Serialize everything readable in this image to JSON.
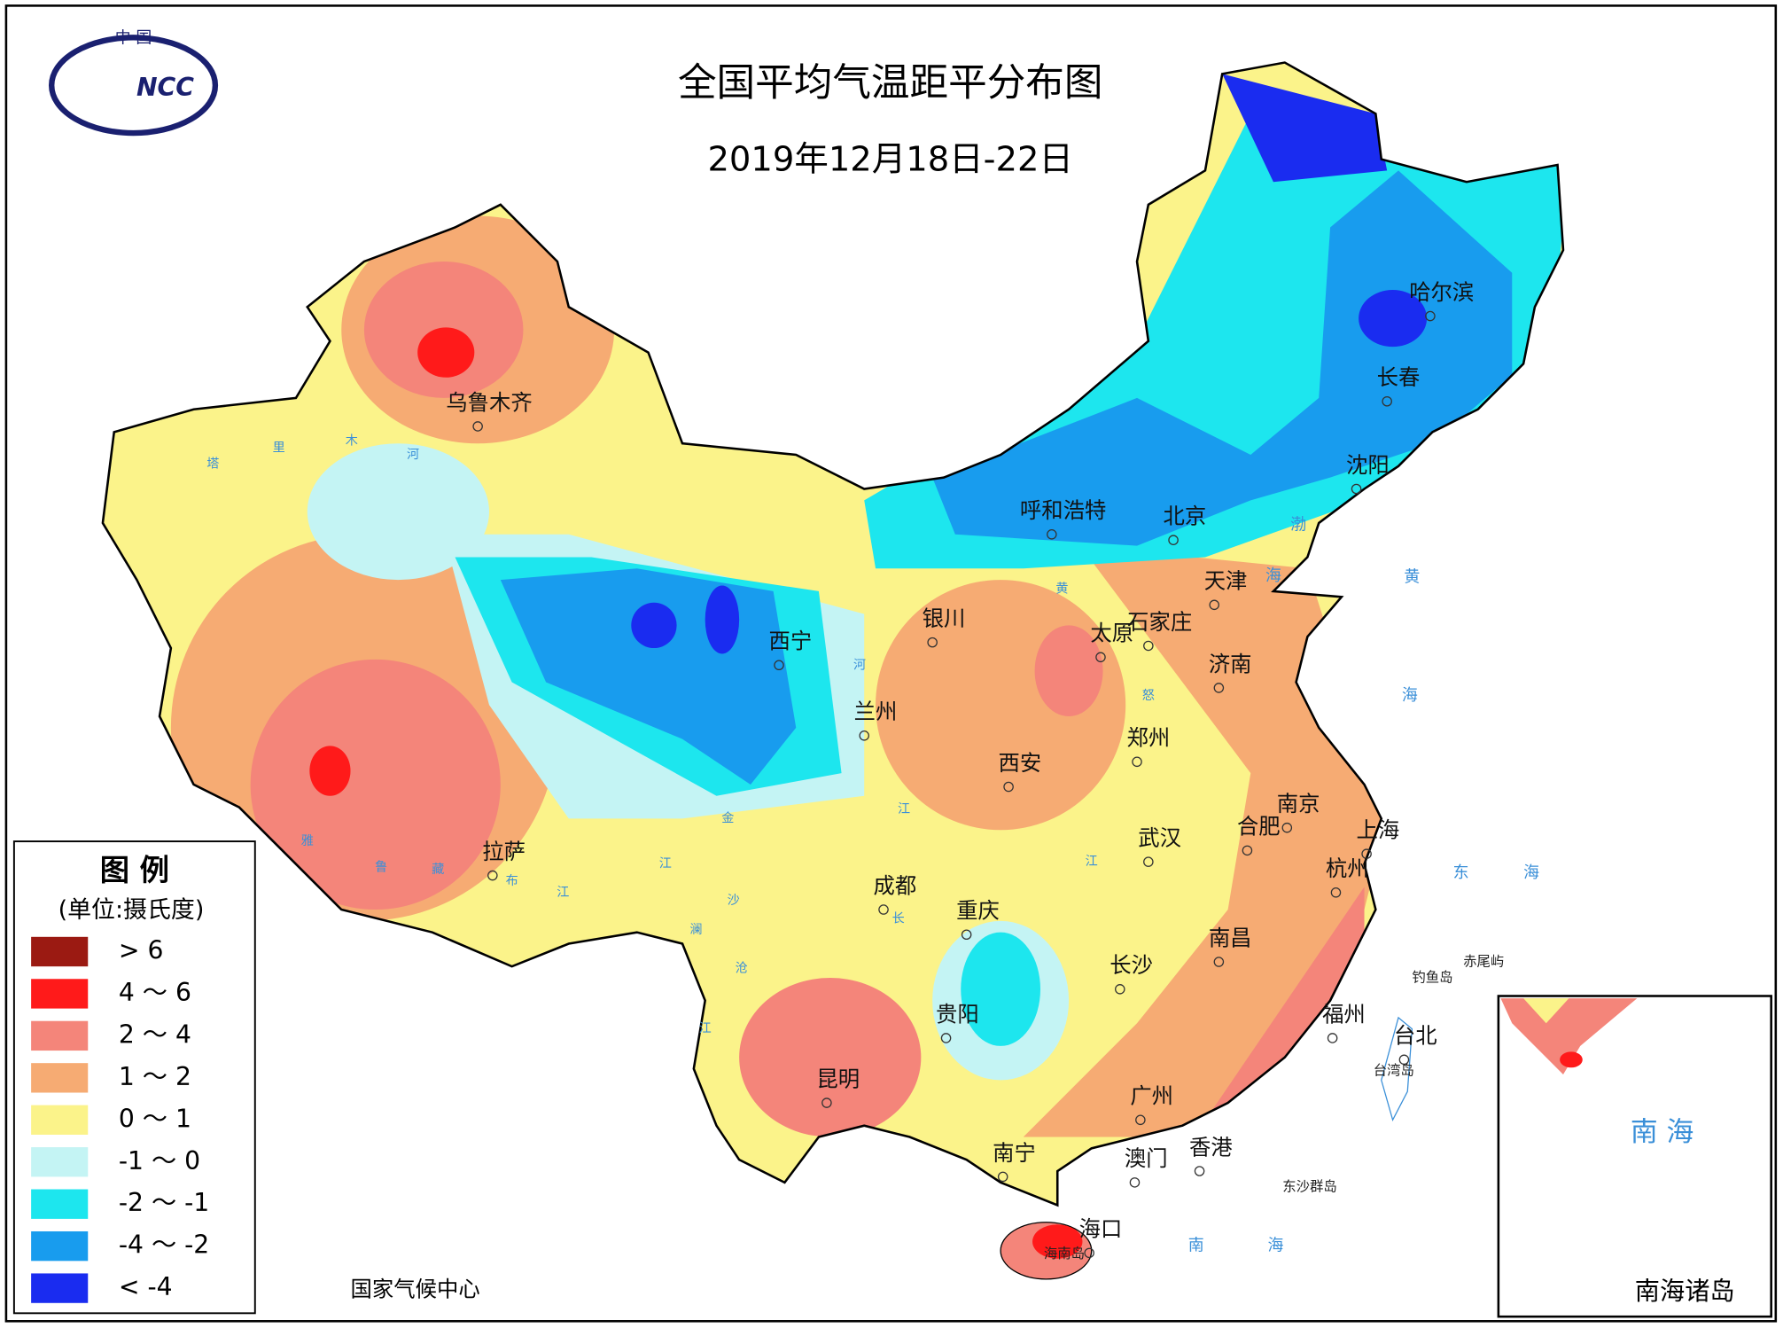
{
  "header": {
    "title": "全国平均气温距平分布图",
    "date": "2019年12月18日-22日",
    "logo_top": "中 国",
    "logo_text": "NCC"
  },
  "legend": {
    "title": "图 例",
    "unit": "(单位:摄氏度)",
    "items": [
      {
        "label": "> 6",
        "color": "#9b1a12"
      },
      {
        "label": "4 ～ 6",
        "color": "#ff1a1a"
      },
      {
        "label": "2 ～ 4",
        "color": "#f4857a"
      },
      {
        "label": "1 ～ 2",
        "color": "#f6ab73"
      },
      {
        "label": "0 ～ 1",
        "color": "#fbf38a"
      },
      {
        "label": "-1 ～ 0",
        "color": "#c4f4f4"
      },
      {
        "label": "-2 ～ -1",
        "color": "#1de6ee"
      },
      {
        "label": "-4 ～ -2",
        "color": "#189cee"
      },
      {
        "label": "< -4",
        "color": "#1a2cf0"
      }
    ]
  },
  "cities": [
    "乌鲁木齐",
    "呼和浩特",
    "北京",
    "天津",
    "石家庄",
    "太原",
    "银川",
    "西宁",
    "兰州",
    "济南",
    "郑州",
    "西安",
    "南京",
    "合肥",
    "上海",
    "武汉",
    "杭州",
    "成都",
    "重庆",
    "南昌",
    "长沙",
    "福州",
    "台北",
    "贵阳",
    "昆明",
    "广州",
    "南宁",
    "澳门",
    "香港",
    "海口",
    "沈阳",
    "长春",
    "哈尔滨",
    "拉萨"
  ],
  "islands": [
    "海南岛",
    "台湾岛",
    "钓鱼岛",
    "赤尾屿",
    "东沙群岛"
  ],
  "seas": [
    "渤",
    "海",
    "黄",
    "海",
    "东",
    "海",
    "南",
    "海"
  ],
  "rivers": [
    "塔",
    "里",
    "木",
    "河",
    "黄",
    "河",
    "长",
    "江",
    "雅",
    "鲁",
    "藏",
    "布",
    "江",
    "金",
    "沙",
    "江",
    "澜",
    "沧",
    "江",
    "怒",
    "江"
  ],
  "inset": {
    "title": "南海诸岛",
    "sea": "南 海"
  },
  "source": "国家气候中心"
}
